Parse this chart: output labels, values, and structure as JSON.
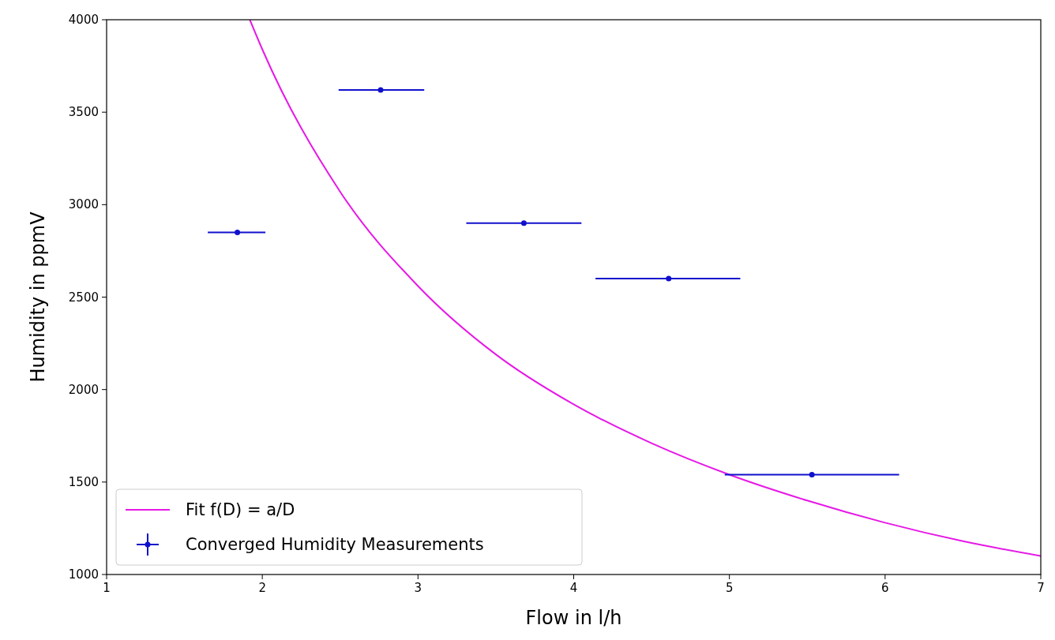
{
  "chart_data": {
    "type": "scatter",
    "xlabel": "Flow in l/h",
    "ylabel": "Humidity in ppmV",
    "xlim": [
      1,
      7
    ],
    "ylim": [
      1000,
      4000
    ],
    "xticks": [
      1,
      2,
      3,
      4,
      5,
      6,
      7
    ],
    "yticks": [
      1000,
      1500,
      2000,
      2500,
      3000,
      3500,
      4000
    ],
    "grid": false,
    "legend": "bottom left",
    "series": [
      {
        "name": "Fit f(D) = a/D",
        "type": "line",
        "color": "#e619e6",
        "marker": "none",
        "line_style": "solid",
        "x": [
          1.92,
          2,
          2.5,
          3,
          3.5,
          4,
          4.5,
          5,
          5.5,
          6,
          6.5,
          7
        ],
        "values": [
          4000,
          3840,
          3070,
          2560,
          2190,
          1920,
          1710,
          1540,
          1400,
          1280,
          1180,
          1100
        ]
      },
      {
        "name": "Converged Humidity Measurements",
        "color": "#1010cc",
        "marker": "circle",
        "x": [
          1.84,
          2.76,
          3.68,
          4.61,
          5.53
        ],
        "values": [
          2850,
          3620,
          2900,
          2600,
          1540
        ],
        "xerrors": [
          [
            1.65,
            2.02
          ],
          [
            2.49,
            3.04
          ],
          [
            3.31,
            4.05
          ],
          [
            4.14,
            5.07
          ],
          [
            4.97,
            6.09
          ]
        ]
      }
    ]
  }
}
